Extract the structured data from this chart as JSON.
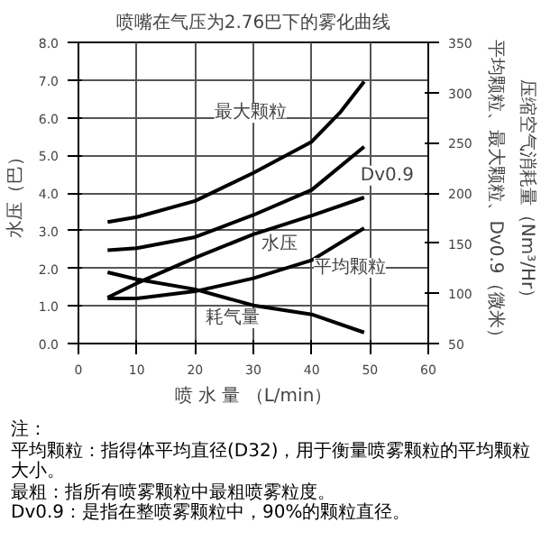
{
  "chart_data": {
    "type": "line",
    "title": "喷嘴在气压为2.76巴下的雾化曲线",
    "xlabel": "喷 水 量 （L/min）",
    "ylabel": "水压（巴）",
    "y2label": [
      "平均颗粒、最大颗粒、Dv0.9（微米）",
      "压缩空气消耗量（Nm³/Hr）"
    ],
    "x": [
      5,
      10,
      20,
      30,
      40,
      45,
      49
    ],
    "series": [
      {
        "name": "最大颗粒",
        "color": "#000000",
        "axis": "y2",
        "values": [
          171,
          176,
          192,
          220,
          251,
          281,
          311
        ]
      },
      {
        "name": "Dv0.9",
        "color": "#000000",
        "axis": "y2",
        "x": [
          5,
          10,
          20,
          30,
          40,
          49
        ],
        "values": [
          143,
          145,
          156,
          178,
          203,
          246
        ]
      },
      {
        "name": "水压",
        "color": "#000000",
        "x": [
          5,
          10,
          20,
          30,
          40,
          49
        ],
        "values": [
          1.22,
          1.6,
          2.28,
          2.9,
          3.4,
          3.88
        ]
      },
      {
        "name": "平均颗粒",
        "color": "#000000",
        "axis": "y2",
        "x": [
          5,
          10,
          20,
          30,
          40,
          49
        ],
        "values": [
          95,
          95,
          102,
          115,
          133,
          165
        ]
      },
      {
        "name": "耗气量",
        "color": "#000000",
        "axis": "y2",
        "x": [
          5,
          10,
          20,
          30,
          40,
          49
        ],
        "values": [
          121,
          114,
          104,
          88,
          79,
          61
        ]
      }
    ],
    "xlim": [
      0,
      60
    ],
    "xticks": [
      0,
      10,
      20,
      30,
      40,
      50,
      60
    ],
    "ylim": [
      0,
      8
    ],
    "yticks": [
      {
        "value": 0,
        "label": "0.0"
      },
      {
        "value": 1,
        "label": "1.0"
      },
      {
        "value": 2,
        "label": "2.0"
      },
      {
        "value": 3,
        "label": "3.0"
      },
      {
        "value": 4,
        "label": "4.0"
      },
      {
        "value": 5,
        "label": "5.0"
      },
      {
        "value": 6,
        "label": "6.0"
      },
      {
        "value": 7,
        "label": "7.0"
      },
      {
        "value": 8,
        "label": "8.0"
      }
    ],
    "y2lim": [
      50,
      350
    ],
    "y2ticks": [
      50,
      100,
      150,
      200,
      250,
      300,
      350
    ],
    "grid": true,
    "marker": "none",
    "line_style": "solid",
    "annotations": [
      "注：",
      "平均颗粒：指得体平均直径(D32)，用于衡量喷雾颗粒的平均颗粒大小。",
      "最粗：指所有喷雾颗粒中最粗喷雾粒度。",
      "Dv0.9：是指在整喷雾颗粒中，90%的颗粒直径。"
    ]
  }
}
